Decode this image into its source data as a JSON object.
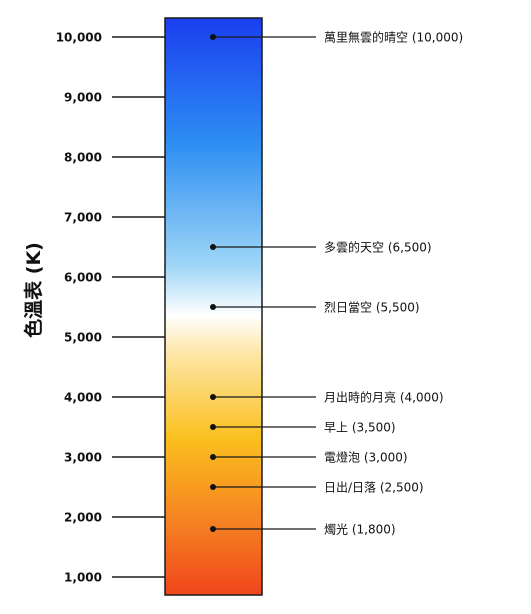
{
  "axis_title": "色溫表 (K)",
  "ticks": [
    "10,000",
    "9,000",
    "8,000",
    "7,000",
    "6,000",
    "5,000",
    "4,000",
    "3,000",
    "2,000",
    "1,000"
  ],
  "markers": [
    {
      "label": "萬里無雲的晴空 (10,000)",
      "value": 10000
    },
    {
      "label": "多雲的天空 (6,500)",
      "value": 6500
    },
    {
      "label": "烈日當空 (5,500)",
      "value": 5500
    },
    {
      "label": "月出時的月亮 (4,000)",
      "value": 4000
    },
    {
      "label": "早上 (3,500)",
      "value": 3500
    },
    {
      "label": "電燈泡 (3,000)",
      "value": 3000
    },
    {
      "label": "日出/日落 (2,500)",
      "value": 2500
    },
    {
      "label": "燭光 (1,800)",
      "value": 1800
    }
  ],
  "gradient_colors": {
    "top": "#1a3ef0",
    "upper": "#2e8ff2",
    "sky": "#9fd6f6",
    "white": "#ffffff",
    "pale": "#fde7a8",
    "yellow": "#fbbf1e",
    "orange": "#f57f22",
    "bottom": "#f0451b"
  }
}
